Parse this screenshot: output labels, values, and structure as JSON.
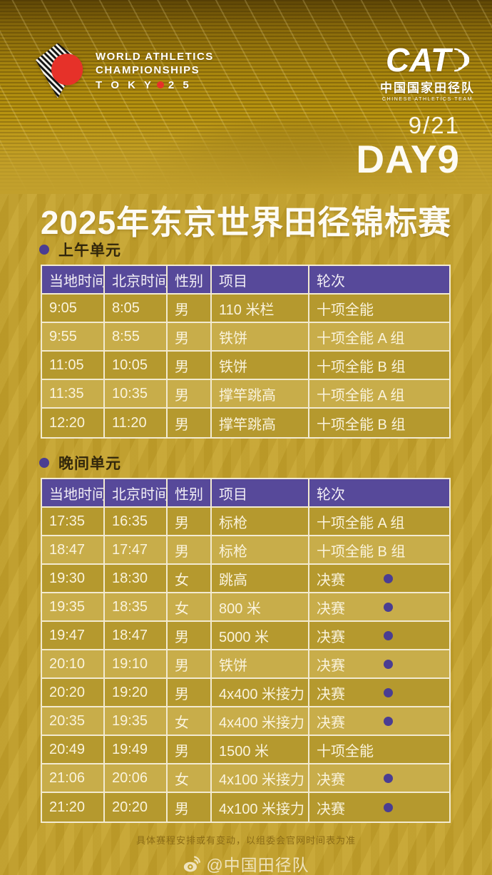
{
  "header": {
    "logo_left": {
      "line1": "WORLD ATHLETICS",
      "line2": "CHAMPIONSHIPS",
      "tokyo_pre": "T O K Y",
      "tokyo_post": "2 5"
    },
    "logo_right": {
      "acronym": "CAT",
      "name_cn": "中国国家田径队",
      "name_en": "CHINESE ATHLETICS TEAM"
    },
    "date": "9/21",
    "day": "DAY9"
  },
  "title": "2025年东京世界田径锦标赛",
  "table_headers": [
    "当地时间",
    "北京时间",
    "性别",
    "项目",
    "轮次"
  ],
  "sessions": [
    {
      "label": "上午单元",
      "rows": [
        {
          "local": "9:05",
          "beijing": "8:05",
          "gender": "男",
          "event": "110 米栏",
          "round": "十项全能",
          "final_dot": false
        },
        {
          "local": "9:55",
          "beijing": "8:55",
          "gender": "男",
          "event": "铁饼",
          "round": "十项全能 A 组",
          "final_dot": false
        },
        {
          "local": "11:05",
          "beijing": "10:05",
          "gender": "男",
          "event": "铁饼",
          "round": "十项全能 B 组",
          "final_dot": false
        },
        {
          "local": "11:35",
          "beijing": "10:35",
          "gender": "男",
          "event": "撑竿跳高",
          "round": "十项全能 A 组",
          "final_dot": false
        },
        {
          "local": "12:20",
          "beijing": "11:20",
          "gender": "男",
          "event": "撑竿跳高",
          "round": "十项全能 B 组",
          "final_dot": false
        }
      ]
    },
    {
      "label": "晚间单元",
      "rows": [
        {
          "local": "17:35",
          "beijing": "16:35",
          "gender": "男",
          "event": "标枪",
          "round": "十项全能 A 组",
          "final_dot": false
        },
        {
          "local": "18:47",
          "beijing": "17:47",
          "gender": "男",
          "event": "标枪",
          "round": "十项全能 B 组",
          "final_dot": false
        },
        {
          "local": "19:30",
          "beijing": "18:30",
          "gender": "女",
          "event": "跳高",
          "round": "决赛",
          "final_dot": true
        },
        {
          "local": "19:35",
          "beijing": "18:35",
          "gender": "女",
          "event": "800 米",
          "round": "决赛",
          "final_dot": true
        },
        {
          "local": "19:47",
          "beijing": "18:47",
          "gender": "男",
          "event": "5000 米",
          "round": "决赛",
          "final_dot": true
        },
        {
          "local": "20:10",
          "beijing": "19:10",
          "gender": "男",
          "event": "铁饼",
          "round": "决赛",
          "final_dot": true
        },
        {
          "local": "20:20",
          "beijing": "19:20",
          "gender": "男",
          "event": "4x400 米接力",
          "round": "决赛",
          "final_dot": true
        },
        {
          "local": "20:35",
          "beijing": "19:35",
          "gender": "女",
          "event": "4x400 米接力",
          "round": "决赛",
          "final_dot": true
        },
        {
          "local": "20:49",
          "beijing": "19:49",
          "gender": "男",
          "event": "1500 米",
          "round": "十项全能",
          "final_dot": false
        },
        {
          "local": "21:06",
          "beijing": "20:06",
          "gender": "女",
          "event": "4x100 米接力",
          "round": "决赛",
          "final_dot": true
        },
        {
          "local": "21:20",
          "beijing": "20:20",
          "gender": "男",
          "event": "4x100 米接力",
          "round": "决赛",
          "final_dot": true
        }
      ]
    }
  ],
  "footer": {
    "disclaimer": "具体赛程安排或有变动，以组委会官网时间表为准",
    "weibo_handle": "@中国田径队"
  },
  "colors": {
    "background_gold": "#c2a02c",
    "header_purple": "#57499a",
    "accent_purple_dot": "#4a3d92",
    "row_dark_gold": "#b5992e",
    "row_light_gold": "#c8ad4a",
    "border_cream": "#f2ead0",
    "cell_text_cream": "#faf3dc",
    "logo_red": "#e63129",
    "title_white": "#fdfbf4",
    "disclaimer_brown": "#8a6b16",
    "weibo_cream": "#efe3bd"
  }
}
